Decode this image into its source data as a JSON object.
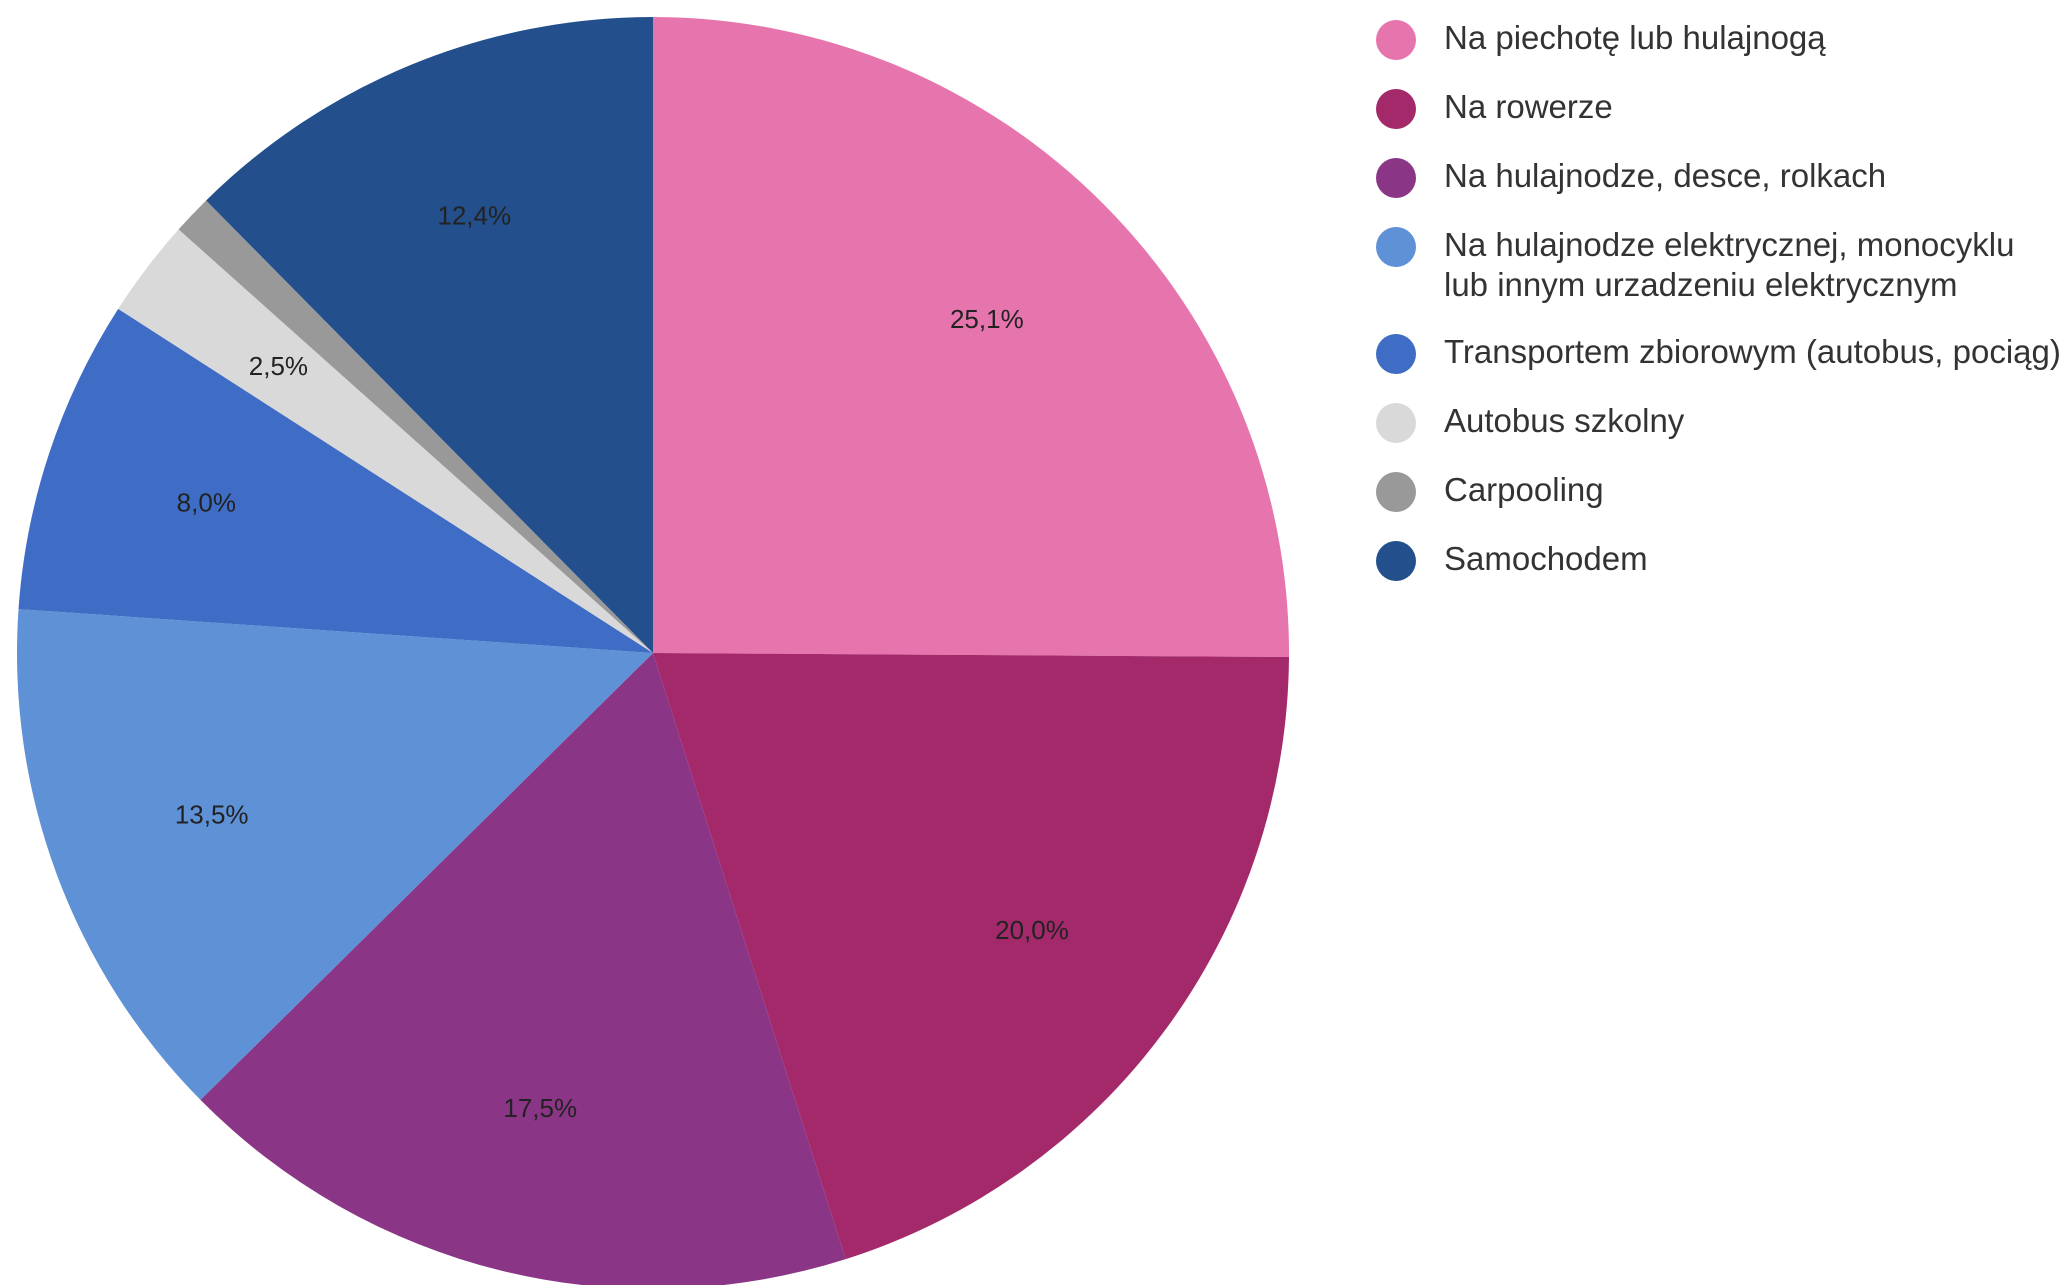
{
  "chart_data": {
    "type": "pie",
    "categories": [
      "Na piechotę lub hulajnogą",
      "Na rowerze",
      "Na hulajnodze, desce, rolkach",
      "Na hulajnodze elektrycznej, monocyklu lub innym urzadzeniu elektrycznym",
      "Transportem zbiorowym (autobus, pociąg)",
      "Autobus szkolny",
      "Carpooling",
      "Samochodem"
    ],
    "values": [
      25.1,
      20.0,
      17.5,
      13.5,
      8.0,
      2.5,
      1.0,
      12.4
    ],
    "value_labels": [
      "25,1%",
      "20,0%",
      "17,5%",
      "13,5%",
      "8,0%",
      "2,5%",
      null,
      "12,4%"
    ],
    "colors": [
      "#e775ad",
      "#a3296b",
      "#8b3586",
      "#5e91d6",
      "#3f6dc5",
      "#d9d9d9",
      "#999999",
      "#234f8c"
    ],
    "legend": "right"
  }
}
